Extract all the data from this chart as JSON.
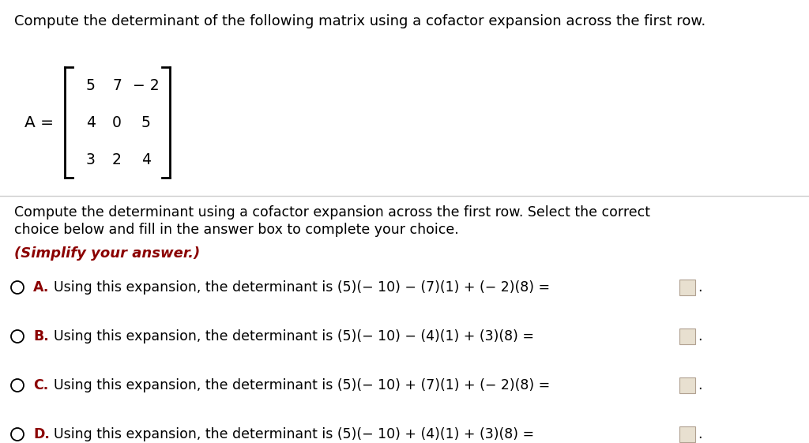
{
  "background_color": "#ffffff",
  "top_question": "Compute the determinant of the following matrix using a cofactor expansion across the first row.",
  "matrix_label": "A =",
  "matrix_rows": [
    [
      "5",
      "7",
      "− 2"
    ],
    [
      "4",
      "0",
      "5"
    ],
    [
      "3",
      "2",
      "4"
    ]
  ],
  "instruction_line1": "Compute the determinant using a cofactor expansion across the first row. Select the correct",
  "instruction_line2": "choice below and fill in the answer box to complete your choice.",
  "simplify_text": "(Simplify your answer.)",
  "simplify_color": "#8b0000",
  "option_letters": [
    "A.",
    "B.",
    "C.",
    "D."
  ],
  "option_letter_color": "#8b0000",
  "option_texts": [
    "Using this expansion, the determinant is (5)(− 10) − (7)(1) + (− 2)(8) =",
    "Using this expansion, the determinant is (5)(− 10) − (4)(1) + (3)(8) =",
    "Using this expansion, the determinant is (5)(− 10) + (7)(1) + (− 2)(8) =",
    "Using this expansion, the determinant is (5)(− 10) + (4)(1) + (3)(8) ="
  ],
  "box_facecolor": "#e8e0d0",
  "box_edgecolor": "#b0a090",
  "font_size_title": 13.0,
  "font_size_body": 12.5,
  "font_size_matrix": 13.5,
  "font_size_options": 12.5
}
